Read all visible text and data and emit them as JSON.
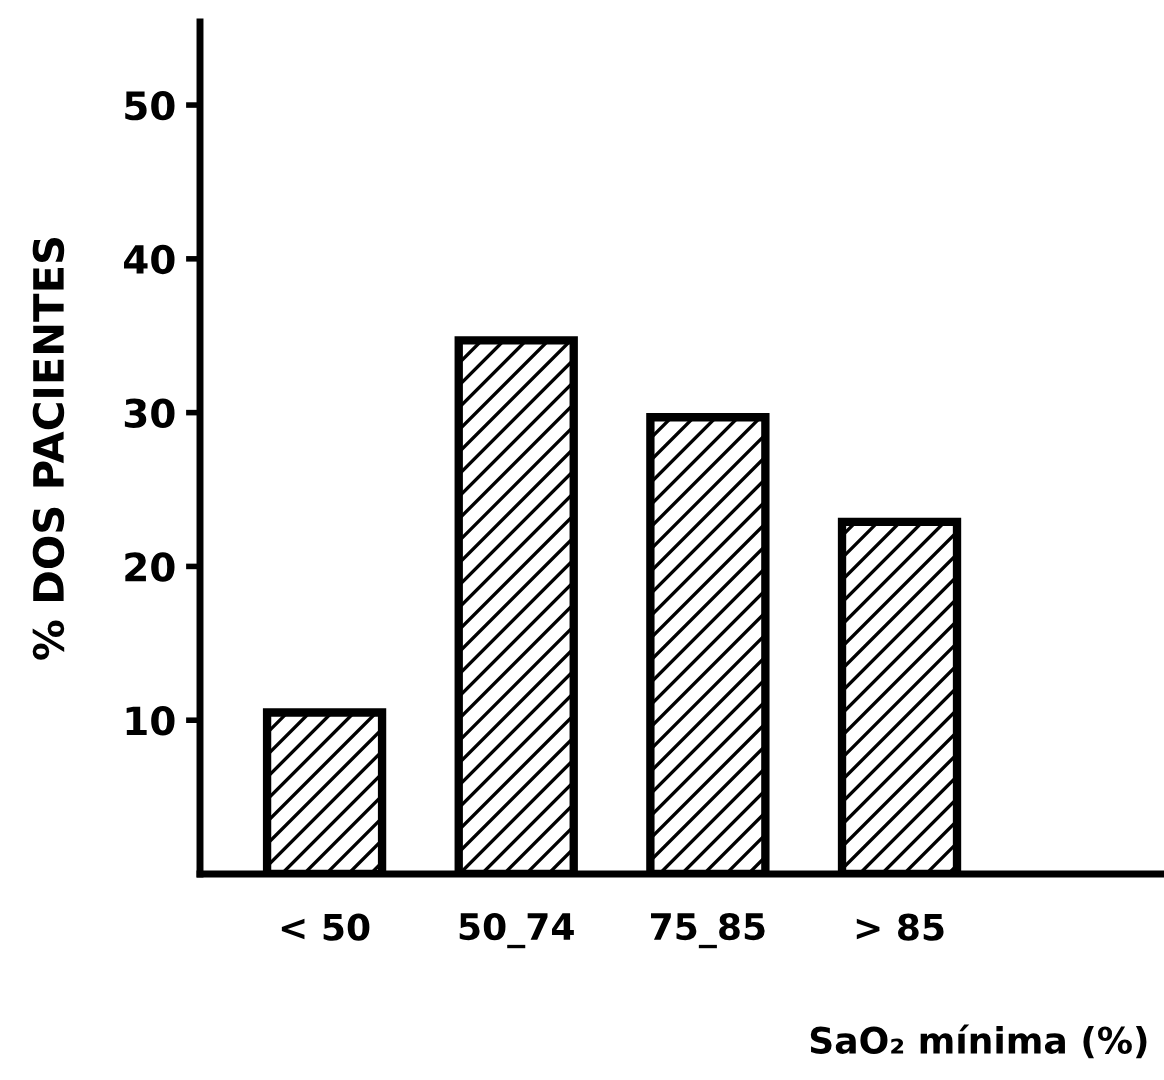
{
  "chart_data": {
    "type": "bar",
    "categories": [
      "< 50",
      "50_74",
      "75_85",
      "> 85"
    ],
    "values": [
      10.5,
      34.7,
      29.7,
      22.9
    ],
    "color": "#000000",
    "xlabel": "SaO₂ mínima (%)",
    "ylabel": "% DOS PACIENTES",
    "ylim": [
      0,
      55.4
    ],
    "yticks": [
      10,
      20,
      30,
      40,
      50
    ],
    "grid": false
  }
}
